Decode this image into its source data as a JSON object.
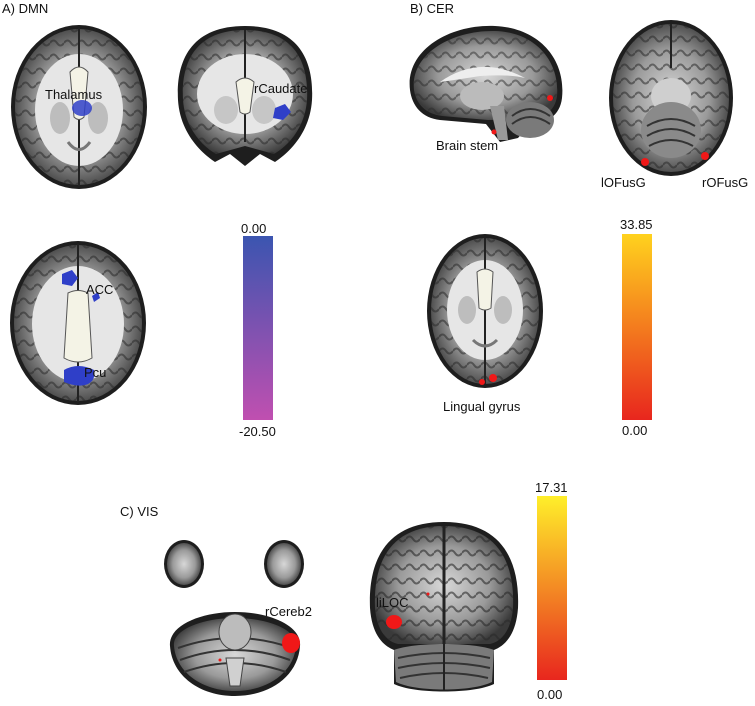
{
  "panels": {
    "a": {
      "label": "A)  DMN"
    },
    "b": {
      "label": "B) CER"
    },
    "c": {
      "label": "C) VIS"
    }
  },
  "regions": {
    "thalamus": "Thalamus",
    "rcaudate": "rCaudate",
    "acc": "ACC",
    "pcu": "Pcu",
    "brainstem": "Brain stem",
    "lofusg": "lOFusG",
    "rofusg": "rOFusG",
    "lingual": "Lingual gyrus",
    "rcereb2": "rCereb2",
    "liloc": "liLOC"
  },
  "colorbars": {
    "dmn": {
      "max": "0.00",
      "min": "-20.50",
      "top_color": "#3b55b0",
      "bottom_color": "#c04fb0"
    },
    "cer": {
      "max": "33.85",
      "min": "0.00",
      "top_color": "#ffd21e",
      "bottom_color": "#e8261e"
    },
    "vis": {
      "max": "17.31",
      "min": "0.00",
      "top_color": "#ffef2a",
      "bottom_color": "#e8261e"
    }
  },
  "colors": {
    "blue_activation": "#2f3fc8",
    "red_activation": "#f01818"
  }
}
